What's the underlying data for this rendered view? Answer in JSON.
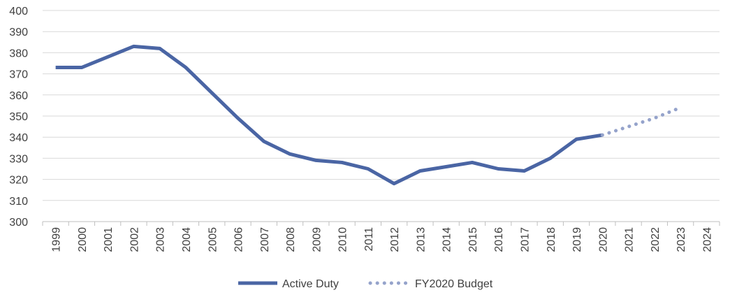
{
  "chart_data": {
    "type": "line",
    "title": "",
    "xlabel": "",
    "ylabel": "",
    "categories": [
      "1999",
      "2000",
      "2001",
      "2002",
      "2003",
      "2004",
      "2005",
      "2006",
      "2007",
      "2008",
      "2009",
      "2010",
      "2011",
      "2012",
      "2013",
      "2014",
      "2015",
      "2016",
      "2017",
      "2018",
      "2019",
      "2020",
      "2021",
      "2022",
      "2023",
      "2024"
    ],
    "ylim": [
      300,
      400
    ],
    "yticks": [
      "300",
      "310",
      "320",
      "330",
      "340",
      "350",
      "360",
      "370",
      "380",
      "390",
      "400"
    ],
    "series": [
      {
        "name": "Active Duty",
        "style": "solid",
        "color": "#4a65a4",
        "points": [
          [
            "1999",
            373
          ],
          [
            "2000",
            373
          ],
          [
            "2001",
            378
          ],
          [
            "2002",
            383
          ],
          [
            "2003",
            382
          ],
          [
            "2004",
            373
          ],
          [
            "2005",
            361
          ],
          [
            "2006",
            349
          ],
          [
            "2007",
            338
          ],
          [
            "2008",
            332
          ],
          [
            "2009",
            329
          ],
          [
            "2010",
            328
          ],
          [
            "2011",
            325
          ],
          [
            "2012",
            318
          ],
          [
            "2013",
            324
          ],
          [
            "2014",
            326
          ],
          [
            "2015",
            328
          ],
          [
            "2016",
            325
          ],
          [
            "2017",
            324
          ],
          [
            "2018",
            330
          ],
          [
            "2019",
            339
          ],
          [
            "2020",
            341
          ]
        ]
      },
      {
        "name": "FY2020 Budget",
        "style": "dotted",
        "color": "#95a3cb",
        "points": [
          [
            "2020",
            341
          ],
          [
            "2021",
            345
          ],
          [
            "2022",
            349
          ],
          [
            "2023",
            354
          ]
        ]
      }
    ],
    "grid": true,
    "legend_position": "bottom"
  }
}
